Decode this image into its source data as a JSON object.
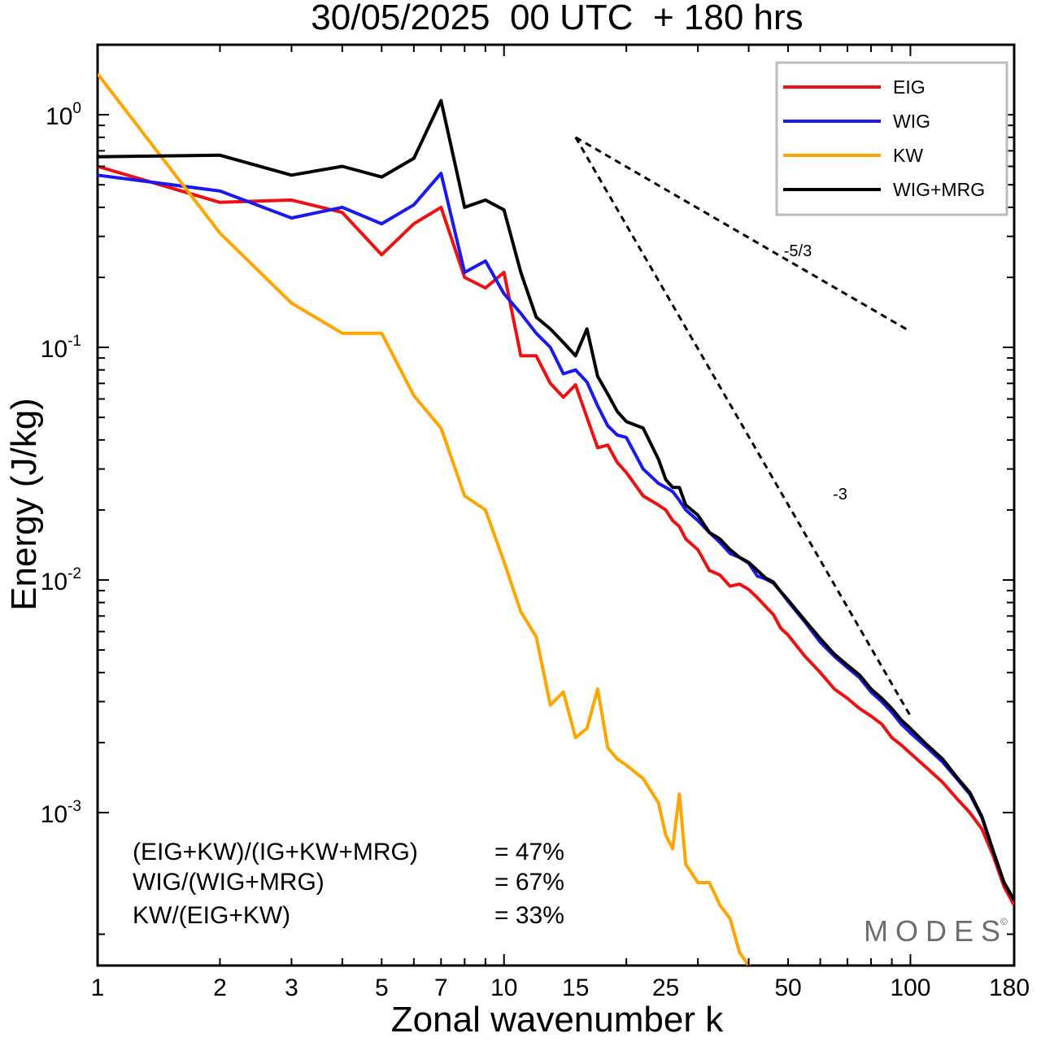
{
  "chart_data": {
    "type": "line",
    "title": "30/05/2025  00 UTC  + 180 hrs",
    "xlabel": "Zonal wavenumber k",
    "ylabel": "Energy (J/kg)",
    "xscale": "log",
    "yscale": "log",
    "xlim": [
      1,
      180
    ],
    "ylim": [
      0.00022,
      2.0
    ],
    "xticks": [
      {
        "value": 1,
        "label": "1"
      },
      {
        "value": 2,
        "label": "2"
      },
      {
        "value": 3,
        "label": "3"
      },
      {
        "value": 5,
        "label": "5"
      },
      {
        "value": 7,
        "label": "7"
      },
      {
        "value": 10,
        "label": "10"
      },
      {
        "value": 15,
        "label": "15"
      },
      {
        "value": 25,
        "label": "25"
      },
      {
        "value": 50,
        "label": "50"
      },
      {
        "value": 100,
        "label": "100"
      },
      {
        "value": 180,
        "label": "180"
      }
    ],
    "yticks": [
      {
        "value": 1,
        "base": "10",
        "exp": "0"
      },
      {
        "value": 0.1,
        "base": "10",
        "exp": "-1"
      },
      {
        "value": 0.01,
        "base": "10",
        "exp": "-2"
      },
      {
        "value": 0.001,
        "base": "10",
        "exp": "-3"
      }
    ],
    "grid": false,
    "legend_position": "top-right",
    "series": [
      {
        "name": "EIG",
        "color": "#ee1111",
        "x": [
          1,
          2,
          3,
          4,
          5,
          6,
          7,
          8,
          9,
          10,
          11,
          12,
          13,
          14,
          15,
          16,
          17,
          18,
          19,
          20,
          22,
          24,
          25,
          26,
          27,
          28,
          30,
          32,
          34,
          36,
          38,
          40,
          42,
          44,
          46,
          48,
          50,
          55,
          60,
          65,
          70,
          75,
          80,
          85,
          90,
          95,
          100,
          110,
          120,
          130,
          140,
          150,
          160,
          170,
          180
        ],
        "y": [
          0.6,
          0.42,
          0.43,
          0.38,
          0.25,
          0.34,
          0.4,
          0.2,
          0.18,
          0.21,
          0.092,
          0.092,
          0.07,
          0.061,
          0.069,
          0.05,
          0.037,
          0.038,
          0.032,
          0.029,
          0.023,
          0.021,
          0.02,
          0.018,
          0.017,
          0.015,
          0.0135,
          0.011,
          0.0105,
          0.0094,
          0.0096,
          0.0091,
          0.0084,
          0.0077,
          0.0071,
          0.0062,
          0.0058,
          0.0047,
          0.004,
          0.0034,
          0.0031,
          0.0028,
          0.0026,
          0.0024,
          0.0021,
          0.00195,
          0.0018,
          0.00155,
          0.00135,
          0.00115,
          0.001,
          0.00085,
          0.00065,
          0.00048,
          0.0004
        ]
      },
      {
        "name": "WIG",
        "color": "#1a1aee",
        "x": [
          1,
          2,
          3,
          4,
          5,
          6,
          7,
          8,
          9,
          10,
          11,
          12,
          13,
          14,
          15,
          16,
          17,
          18,
          19,
          20,
          22,
          24,
          25,
          26,
          27,
          28,
          30,
          32,
          34,
          36,
          38,
          40,
          42,
          44,
          46,
          48,
          50,
          55,
          60,
          65,
          70,
          75,
          80,
          85,
          90,
          95,
          100,
          110,
          120,
          130,
          140,
          150,
          160,
          170,
          180
        ],
        "y": [
          0.55,
          0.47,
          0.36,
          0.4,
          0.34,
          0.41,
          0.56,
          0.21,
          0.235,
          0.17,
          0.14,
          0.115,
          0.1,
          0.077,
          0.08,
          0.071,
          0.056,
          0.046,
          0.042,
          0.041,
          0.03,
          0.026,
          0.025,
          0.024,
          0.022,
          0.02,
          0.018,
          0.016,
          0.0145,
          0.013,
          0.0125,
          0.0118,
          0.0104,
          0.0101,
          0.0097,
          0.0089,
          0.0081,
          0.0066,
          0.0054,
          0.0047,
          0.0042,
          0.0038,
          0.0033,
          0.003,
          0.0027,
          0.0024,
          0.0022,
          0.0019,
          0.00165,
          0.0014,
          0.0012,
          0.00095,
          0.00068,
          0.0005,
          0.00042
        ]
      },
      {
        "name": "KW",
        "color": "#ffa500",
        "x": [
          1,
          2,
          3,
          4,
          5,
          6,
          7,
          8,
          9,
          10,
          11,
          12,
          13,
          14,
          15,
          16,
          17,
          18,
          19,
          20,
          22,
          24,
          25,
          26,
          27,
          28,
          30,
          32,
          34,
          36,
          38,
          40,
          42,
          44,
          46,
          48,
          50
        ],
        "y": [
          1.5,
          0.31,
          0.155,
          0.115,
          0.115,
          0.062,
          0.045,
          0.023,
          0.02,
          0.012,
          0.0073,
          0.0057,
          0.0029,
          0.0033,
          0.0021,
          0.0023,
          0.0034,
          0.0019,
          0.0017,
          0.0016,
          0.0014,
          0.0011,
          0.0008,
          0.0007,
          0.0012,
          0.0006,
          0.0005,
          0.0005,
          0.0004,
          0.00035,
          0.00025,
          0.00022,
          0.0002,
          0.00019,
          0.00018,
          0.0002,
          0.00021
        ]
      },
      {
        "name": "WIG+MRG",
        "color": "#000000",
        "x": [
          1,
          2,
          3,
          4,
          5,
          6,
          7,
          8,
          9,
          10,
          11,
          12,
          13,
          14,
          15,
          16,
          17,
          18,
          19,
          20,
          22,
          24,
          25,
          26,
          27,
          28,
          30,
          32,
          34,
          36,
          38,
          40,
          42,
          44,
          46,
          48,
          50,
          55,
          60,
          65,
          70,
          75,
          80,
          85,
          90,
          95,
          100,
          110,
          120,
          130,
          140,
          150,
          160,
          170,
          180
        ],
        "y": [
          0.66,
          0.67,
          0.55,
          0.6,
          0.54,
          0.65,
          1.15,
          0.4,
          0.43,
          0.39,
          0.21,
          0.135,
          0.12,
          0.105,
          0.092,
          0.12,
          0.075,
          0.063,
          0.053,
          0.048,
          0.045,
          0.033,
          0.027,
          0.025,
          0.025,
          0.021,
          0.019,
          0.016,
          0.015,
          0.0135,
          0.0125,
          0.0119,
          0.011,
          0.0102,
          0.0098,
          0.0089,
          0.0082,
          0.0067,
          0.0056,
          0.0048,
          0.0043,
          0.0039,
          0.0034,
          0.0031,
          0.0028,
          0.0025,
          0.0023,
          0.00195,
          0.0017,
          0.00142,
          0.00122,
          0.00096,
          0.00068,
          0.0005,
          0.00042
        ]
      }
    ],
    "reference_lines": [
      {
        "slope_label": "-5/3",
        "x": [
          15,
          100
        ],
        "y": [
          0.8,
          0.117
        ]
      },
      {
        "slope_label": "-3",
        "x": [
          15,
          100
        ],
        "y": [
          0.8,
          0.0026
        ]
      }
    ],
    "annotations": [
      {
        "label": "(EIG+KW)/(IG+KW+MRG)",
        "value": "= 47%"
      },
      {
        "label": "WIG/(WIG+MRG)",
        "value": "= 67%"
      },
      {
        "label": "KW/(EIG+KW)",
        "value": "= 33%"
      }
    ],
    "watermark": "MODES",
    "watermark_mark": "©"
  }
}
